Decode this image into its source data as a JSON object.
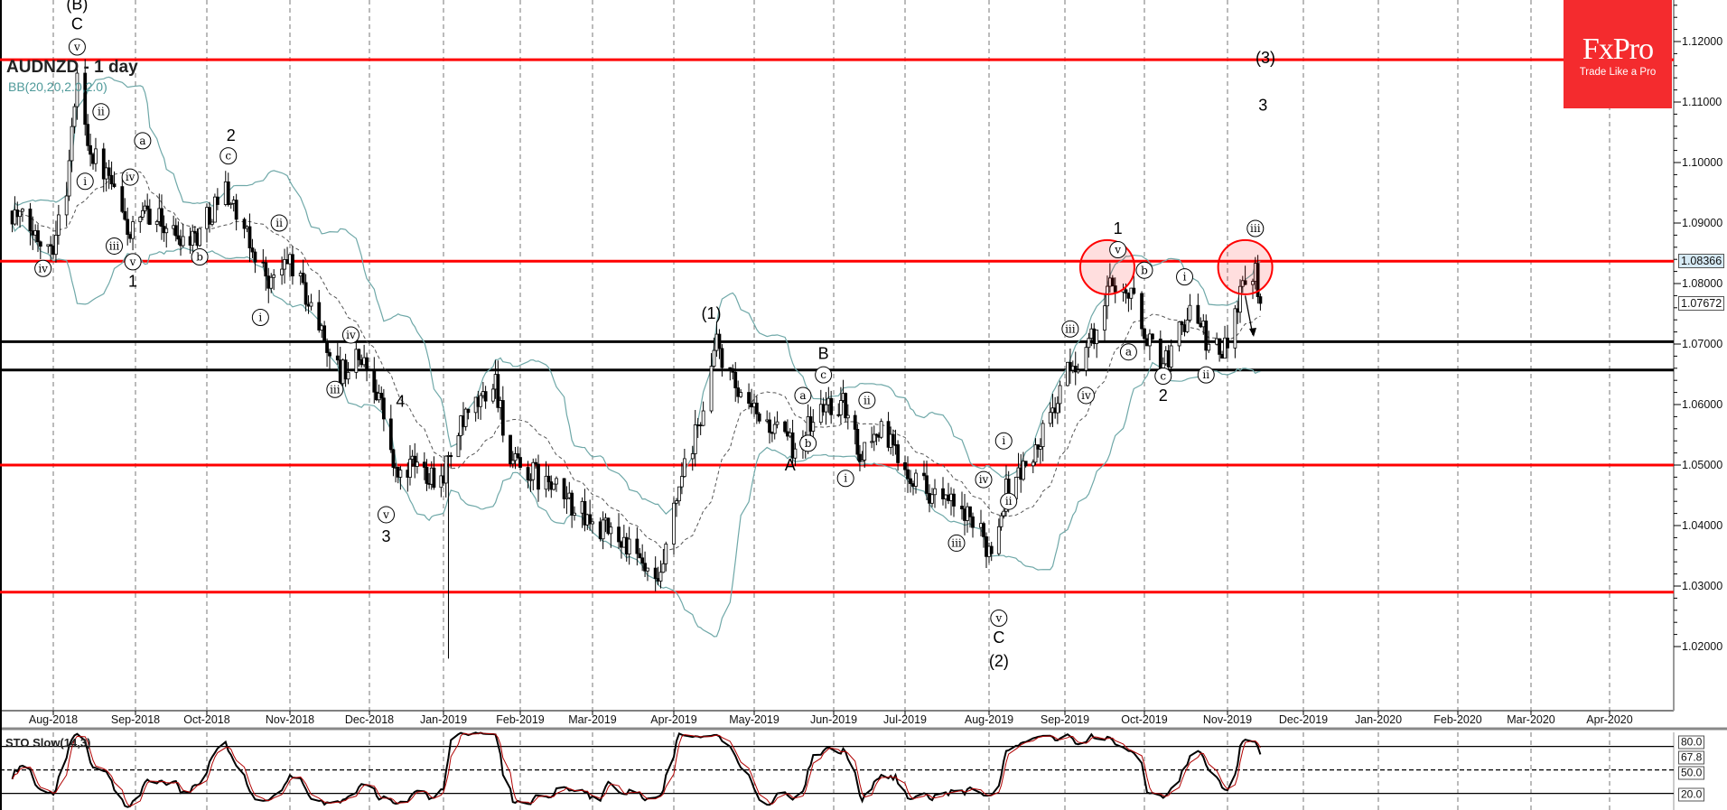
{
  "header": {
    "title": "AUDNZD - 1 day",
    "indicator": "BB(20,20,2.0,2.0)"
  },
  "logo": {
    "brand": "FxPro",
    "tagline": "Trade Like a Pro",
    "color": "#f42b2e"
  },
  "price_axis": [
    "1.12000",
    "1.11000",
    "1.10000",
    "1.09000",
    "1.08000",
    "1.07000",
    "1.06000",
    "1.05000",
    "1.04000",
    "1.03000",
    "1.02000"
  ],
  "price_markers": {
    "ask": "1.08366",
    "bid": "1.07672"
  },
  "stochastic": {
    "label": "STO Slow(14,3)",
    "levels": [
      "80.0",
      "50.0",
      "20.0"
    ],
    "current": "67.8",
    "colors": {
      "k": "#000000",
      "d": "#b00000"
    }
  },
  "chart_data": {
    "type": "candlestick",
    "symbol": "AUDNZD",
    "timeframe": "daily",
    "x_tick_labels": [
      "Aug-2018",
      "Sep-2018",
      "Oct-2018",
      "Nov-2018",
      "Dec-2018",
      "Jan-2019",
      "Feb-2019",
      "Mar-2019",
      "Apr-2019",
      "May-2019",
      "Jun-2019",
      "Jul-2019",
      "Aug-2019",
      "Sep-2019",
      "Oct-2019",
      "Nov-2019",
      "Dec-2019",
      "Jan-2020",
      "Feb-2020",
      "Mar-2020",
      "Apr-2020"
    ],
    "ylim": [
      1.0095,
      1.1268
    ],
    "grid": "vertical dashed at month starts",
    "close_path": [
      [
        "2018-07-16",
        1.092
      ],
      [
        "2018-07-25",
        1.088
      ],
      [
        "2018-08-01",
        1.087
      ],
      [
        "2018-08-06",
        1.096
      ],
      [
        "2018-08-10",
        1.114
      ],
      [
        "2018-08-15",
        1.102
      ],
      [
        "2018-08-22",
        1.097
      ],
      [
        "2018-08-30",
        1.088
      ],
      [
        "2018-09-07",
        1.092
      ],
      [
        "2018-09-18",
        1.088
      ],
      [
        "2018-09-27",
        1.088
      ],
      [
        "2018-10-08",
        1.096
      ],
      [
        "2018-10-15",
        1.088
      ],
      [
        "2018-10-25",
        1.08
      ],
      [
        "2018-11-01",
        1.084
      ],
      [
        "2018-11-09",
        1.076
      ],
      [
        "2018-11-20",
        1.065
      ],
      [
        "2018-11-27",
        1.068
      ],
      [
        "2018-12-05",
        1.062
      ],
      [
        "2018-12-12",
        1.048
      ],
      [
        "2018-12-20",
        1.05
      ],
      [
        "2018-12-31",
        1.048
      ],
      [
        "2019-01-08",
        1.056
      ],
      [
        "2019-01-22",
        1.064
      ],
      [
        "2019-01-28",
        1.05
      ],
      [
        "2019-02-08",
        1.048
      ],
      [
        "2019-02-20",
        1.044
      ],
      [
        "2019-03-01",
        1.04
      ],
      [
        "2019-03-12",
        1.038
      ],
      [
        "2019-03-26",
        1.029
      ],
      [
        "2019-04-03",
        1.046
      ],
      [
        "2019-04-10",
        1.056
      ],
      [
        "2019-04-17",
        1.07
      ],
      [
        "2019-04-26",
        1.06
      ],
      [
        "2019-05-03",
        1.058
      ],
      [
        "2019-05-16",
        1.053
      ],
      [
        "2019-05-29",
        1.06
      ],
      [
        "2019-06-05",
        1.06
      ],
      [
        "2019-06-12",
        1.052
      ],
      [
        "2019-06-20",
        1.056
      ],
      [
        "2019-07-01",
        1.05
      ],
      [
        "2019-07-12",
        1.045
      ],
      [
        "2019-07-22",
        1.042
      ],
      [
        "2019-08-02",
        1.036
      ],
      [
        "2019-08-08",
        1.046
      ],
      [
        "2019-08-20",
        1.052
      ],
      [
        "2019-09-02",
        1.065
      ],
      [
        "2019-09-13",
        1.072
      ],
      [
        "2019-09-19",
        1.081
      ],
      [
        "2019-09-26",
        1.078
      ],
      [
        "2019-10-03",
        1.07
      ],
      [
        "2019-10-09",
        1.067
      ],
      [
        "2019-10-18",
        1.076
      ],
      [
        "2019-10-25",
        1.07
      ],
      [
        "2019-10-30",
        1.068
      ],
      [
        "2019-11-06",
        1.079
      ],
      [
        "2019-11-12",
        1.083
      ],
      [
        "2019-11-14",
        1.07672
      ]
    ],
    "spike_low": [
      "2019-01-03",
      1.018
    ],
    "levels": [
      {
        "price": 1.117,
        "color": "#ff0000"
      },
      {
        "price": 1.0837,
        "color": "#ff0000"
      },
      {
        "price": 1.0704,
        "color": "#000000"
      },
      {
        "price": 1.0657,
        "color": "#000000"
      },
      {
        "price": 1.05,
        "color": "#ff0000"
      },
      {
        "price": 1.029,
        "color": "#ff0000"
      }
    ],
    "highlights": [
      [
        "2019-09-17",
        1.0827
      ],
      [
        "2019-11-08",
        1.0827
      ]
    ],
    "forecast_arrow": [
      [
        "2019-11-08",
        1.078
      ],
      [
        "2019-11-11",
        1.0715
      ]
    ],
    "wave_labels": [
      {
        "t": "(B)",
        "d": "2018-08-10",
        "p": 1.1262,
        "c": false
      },
      {
        "t": "C",
        "d": "2018-08-10",
        "p": 1.1229,
        "c": false
      },
      {
        "t": "v",
        "d": "2018-08-10",
        "p": 1.1191,
        "c": true
      },
      {
        "t": "i",
        "d": "2018-08-13",
        "p": 1.0969,
        "c": true
      },
      {
        "t": "ii",
        "d": "2018-08-19",
        "p": 1.1084,
        "c": true
      },
      {
        "t": "iii",
        "d": "2018-08-24",
        "p": 1.0862,
        "c": true
      },
      {
        "t": "iv",
        "d": "2018-08-30",
        "p": 1.0976,
        "c": true
      },
      {
        "t": "v",
        "d": "2018-08-31",
        "p": 1.0836,
        "c": true
      },
      {
        "t": "a",
        "d": "2018-09-04",
        "p": 1.1036,
        "c": true
      },
      {
        "t": "1",
        "d": "2018-08-31",
        "p": 1.0804,
        "c": false
      },
      {
        "t": "2",
        "d": "2018-10-10",
        "p": 1.1045,
        "c": false
      },
      {
        "t": "c",
        "d": "2018-10-09",
        "p": 1.1011,
        "c": true
      },
      {
        "t": "b",
        "d": "2018-09-28",
        "p": 1.0844,
        "c": true
      },
      {
        "t": "iv",
        "d": "2018-07-28",
        "p": 1.0825,
        "c": true
      },
      {
        "t": "ii",
        "d": "2018-10-28",
        "p": 1.09,
        "c": true
      },
      {
        "t": "i",
        "d": "2018-10-21",
        "p": 1.0744,
        "c": true
      },
      {
        "t": "iv",
        "d": "2018-11-24",
        "p": 1.0715,
        "c": true
      },
      {
        "t": "iii",
        "d": "2018-11-18",
        "p": 1.0625,
        "c": true
      },
      {
        "t": "4",
        "d": "2018-12-14",
        "p": 1.0605,
        "c": false
      },
      {
        "t": "v",
        "d": "2018-12-08",
        "p": 1.0418,
        "c": true
      },
      {
        "t": "3",
        "d": "2018-12-08",
        "p": 1.0382,
        "c": false
      },
      {
        "t": "(1)",
        "d": "2019-04-15",
        "p": 1.0751,
        "c": false
      },
      {
        "t": "B",
        "d": "2019-05-28",
        "p": 1.0684,
        "c": false
      },
      {
        "t": "c",
        "d": "2019-05-28",
        "p": 1.0649,
        "c": true
      },
      {
        "t": "a",
        "d": "2019-05-20",
        "p": 1.0615,
        "c": true
      },
      {
        "t": "b",
        "d": "2019-05-22",
        "p": 1.0536,
        "c": true
      },
      {
        "t": "A",
        "d": "2019-05-15",
        "p": 1.05,
        "c": false
      },
      {
        "t": "ii",
        "d": "2019-06-15",
        "p": 1.0607,
        "c": true
      },
      {
        "t": "i",
        "d": "2019-06-06",
        "p": 1.0478,
        "c": true
      },
      {
        "t": "iv",
        "d": "2019-07-30",
        "p": 1.0476,
        "c": true
      },
      {
        "t": "ii",
        "d": "2019-08-09",
        "p": 1.044,
        "c": true
      },
      {
        "t": "i",
        "d": "2019-08-07",
        "p": 1.054,
        "c": true
      },
      {
        "t": "iii",
        "d": "2019-07-20",
        "p": 1.0371,
        "c": true
      },
      {
        "t": "v",
        "d": "2019-08-05",
        "p": 1.0247,
        "c": true
      },
      {
        "t": "C",
        "d": "2019-08-05",
        "p": 1.0215,
        "c": false
      },
      {
        "t": "(2)",
        "d": "2019-08-05",
        "p": 1.0176,
        "c": false
      },
      {
        "t": "iii",
        "d": "2019-09-03",
        "p": 1.0725,
        "c": true
      },
      {
        "t": "iv",
        "d": "2019-09-09",
        "p": 1.0615,
        "c": true
      },
      {
        "t": "1",
        "d": "2019-09-21",
        "p": 1.0891,
        "c": false
      },
      {
        "t": "v",
        "d": "2019-09-21",
        "p": 1.0856,
        "c": true
      },
      {
        "t": "b",
        "d": "2019-10-01",
        "p": 1.0822,
        "c": true
      },
      {
        "t": "a",
        "d": "2019-09-25",
        "p": 1.0687,
        "c": true
      },
      {
        "t": "c",
        "d": "2019-10-08",
        "p": 1.0647,
        "c": true
      },
      {
        "t": "2",
        "d": "2019-10-08",
        "p": 1.0615,
        "c": false
      },
      {
        "t": "i",
        "d": "2019-10-16",
        "p": 1.0811,
        "c": true
      },
      {
        "t": "ii",
        "d": "2019-10-24",
        "p": 1.0649,
        "c": true
      },
      {
        "t": "iii",
        "d": "2019-11-12",
        "p": 1.0891,
        "c": true
      },
      {
        "t": "(3)",
        "d": "2019-11-16",
        "p": 1.1173,
        "c": false
      },
      {
        "t": "3",
        "d": "2019-11-15",
        "p": 1.1095,
        "c": false
      }
    ]
  }
}
